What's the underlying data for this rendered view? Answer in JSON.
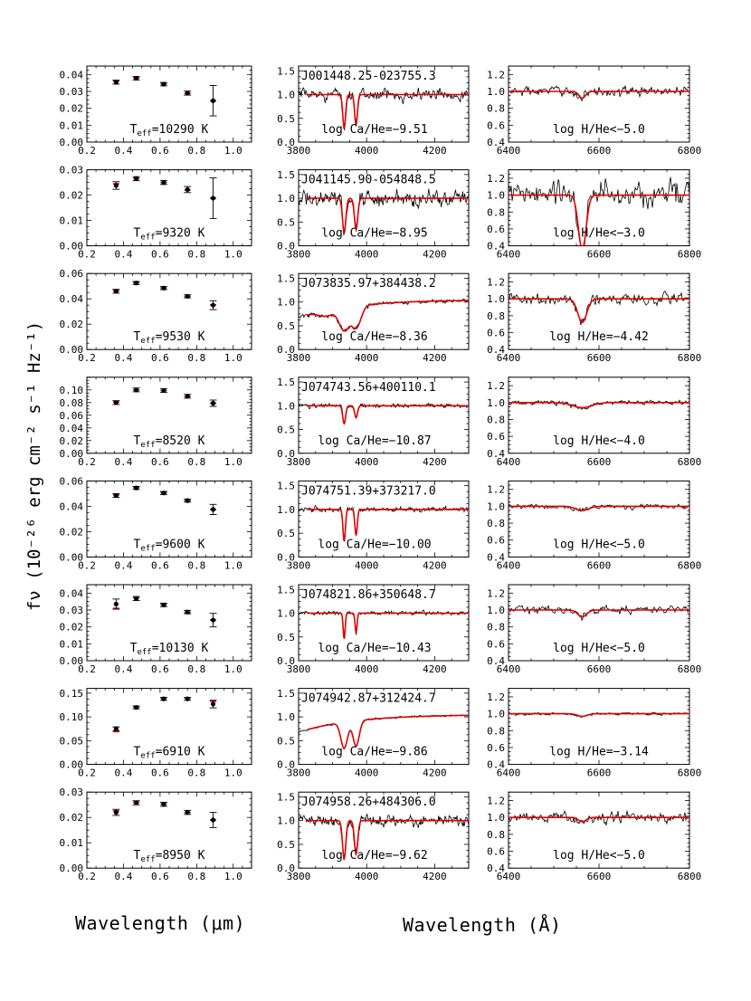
{
  "figure": {
    "ylabel": "fν (10⁻²⁶ erg cm⁻² s⁻¹ Hz⁻¹)",
    "xlabel_left": "Wavelength (μm)",
    "xlabel_right": "Wavelength (Å)",
    "model_color": "#e00000",
    "data_color": "#000000"
  },
  "chart_data": [
    {
      "type": "scatter",
      "panel": "photometry",
      "row": 1,
      "name": "",
      "annotation": "Teff=10290 K",
      "teff": 10290,
      "xlim": [
        0.2,
        1.1
      ],
      "ylim": [
        0,
        0.045
      ],
      "xticks": [
        0.2,
        0.4,
        0.6,
        0.8,
        1.0
      ],
      "yticks": [
        0.0,
        0.01,
        0.02,
        0.03,
        0.04
      ],
      "yfmt": 2,
      "x": [
        0.36,
        0.47,
        0.62,
        0.75,
        0.89
      ],
      "y": [
        0.0355,
        0.0378,
        0.0343,
        0.029,
        0.0245
      ],
      "yerr": [
        0.0012,
        0.001,
        0.001,
        0.0012,
        0.009
      ],
      "model_x": [
        0.36,
        0.47,
        0.62,
        0.75,
        0.89
      ],
      "model_y": [
        0.0362,
        0.038,
        0.0345,
        0.0288,
        0.0244
      ]
    },
    {
      "type": "line",
      "panel": "CaK",
      "row": 1,
      "name": "J001448.25-023755.3",
      "annotation": "log Ca/He=-9.51",
      "logCaHe": -9.51,
      "xlim": [
        3800,
        4300
      ],
      "ylim": [
        0,
        1.6
      ],
      "xticks": [
        3800,
        4000,
        4200
      ],
      "yticks": [
        0.0,
        0.5,
        1.0,
        1.5
      ],
      "yfmt": 1,
      "noise": 0.16,
      "continuum": "flat",
      "lines": [
        {
          "c": 3934,
          "depth": 0.7,
          "w": 6
        },
        {
          "c": 3969,
          "depth": 0.62,
          "w": 6
        }
      ]
    },
    {
      "type": "line",
      "panel": "Halpha",
      "row": 1,
      "annotation": "log H/He<-5.0",
      "logHHe": "<-5.0",
      "xlim": [
        6400,
        6800
      ],
      "ylim": [
        0.4,
        1.3
      ],
      "xticks": [
        6400,
        6600,
        6800
      ],
      "yticks": [
        0.4,
        0.6,
        0.8,
        1.0,
        1.2
      ],
      "yfmt": 1,
      "noise": 0.08,
      "lines": [
        {
          "c": 6563,
          "depth": 0.08,
          "w": 10
        }
      ]
    },
    {
      "type": "scatter",
      "panel": "photometry",
      "row": 2,
      "annotation": "Teff=9320 K",
      "teff": 9320,
      "xlim": [
        0.2,
        1.1
      ],
      "ylim": [
        0,
        0.03
      ],
      "xticks": [
        0.2,
        0.4,
        0.6,
        0.8,
        1.0
      ],
      "yticks": [
        0.0,
        0.01,
        0.02,
        0.03
      ],
      "yfmt": 2,
      "x": [
        0.36,
        0.47,
        0.62,
        0.75,
        0.89
      ],
      "y": [
        0.0238,
        0.0265,
        0.025,
        0.0222,
        0.0188
      ],
      "yerr": [
        0.0015,
        0.0008,
        0.0008,
        0.0012,
        0.008
      ],
      "model_x": [
        0.36,
        0.47,
        0.62,
        0.75,
        0.89
      ],
      "model_y": [
        0.0245,
        0.0267,
        0.025,
        0.022,
        0.0188
      ]
    },
    {
      "type": "line",
      "panel": "CaK",
      "row": 2,
      "name": "J041145.90-054848.5",
      "annotation": "log Ca/He=-8.95",
      "logCaHe": -8.95,
      "xlim": [
        3800,
        4300
      ],
      "ylim": [
        0,
        1.6
      ],
      "xticks": [
        3800,
        4000,
        4200
      ],
      "yticks": [
        0.0,
        0.5,
        1.0,
        1.5
      ],
      "yfmt": 1,
      "noise": 0.22,
      "continuum": "flat",
      "lines": [
        {
          "c": 3934,
          "depth": 0.72,
          "w": 7
        },
        {
          "c": 3969,
          "depth": 0.65,
          "w": 7
        }
      ]
    },
    {
      "type": "line",
      "panel": "Halpha",
      "row": 2,
      "annotation": "log H/He<-3.0",
      "logHHe": "<-3.0",
      "xlim": [
        6400,
        6800
      ],
      "ylim": [
        0.4,
        1.3
      ],
      "xticks": [
        6400,
        6600,
        6800
      ],
      "yticks": [
        0.4,
        0.6,
        0.8,
        1.0,
        1.2
      ],
      "yfmt": 1,
      "noise": 0.22,
      "lines": [
        {
          "c": 6563,
          "depth": 0.65,
          "w": 12
        }
      ]
    },
    {
      "type": "scatter",
      "panel": "photometry",
      "row": 3,
      "annotation": "Teff=9530 K",
      "teff": 9530,
      "xlim": [
        0.2,
        1.1
      ],
      "ylim": [
        0,
        0.06
      ],
      "xticks": [
        0.2,
        0.4,
        0.6,
        0.8,
        1.0
      ],
      "yticks": [
        0.0,
        0.02,
        0.04,
        0.06
      ],
      "yfmt": 2,
      "x": [
        0.36,
        0.47,
        0.62,
        0.75,
        0.89
      ],
      "y": [
        0.046,
        0.0525,
        0.0485,
        0.042,
        0.035
      ],
      "yerr": [
        0.0015,
        0.0012,
        0.0012,
        0.0012,
        0.0035
      ],
      "model_x": [
        0.36,
        0.47,
        0.62,
        0.75,
        0.89
      ],
      "model_y": [
        0.0465,
        0.0528,
        0.0487,
        0.042,
        0.0352
      ]
    },
    {
      "type": "line",
      "panel": "CaK",
      "row": 3,
      "name": "J073835.97+384438.2",
      "annotation": "log Ca/He=-8.36",
      "logCaHe": -8.36,
      "xlim": [
        3800,
        4300
      ],
      "ylim": [
        0,
        1.6
      ],
      "xticks": [
        3800,
        4000,
        4200
      ],
      "yticks": [
        0.0,
        0.5,
        1.0,
        1.5
      ],
      "yfmt": 1,
      "noise": 0.06,
      "continuum": "rising",
      "lines": [
        {
          "c": 3934,
          "depth": 0.55,
          "w": 22
        },
        {
          "c": 3969,
          "depth": 0.5,
          "w": 20
        },
        {
          "c": 3880,
          "depth": 0.15,
          "w": 30
        }
      ]
    },
    {
      "type": "line",
      "panel": "Halpha",
      "row": 3,
      "annotation": "log H/He=-4.42",
      "logHHe": -4.42,
      "xlim": [
        6400,
        6800
      ],
      "ylim": [
        0.4,
        1.3
      ],
      "xticks": [
        6400,
        6600,
        6800
      ],
      "yticks": [
        0.4,
        0.6,
        0.8,
        1.0,
        1.2
      ],
      "yfmt": 1,
      "noise": 0.09,
      "lines": [
        {
          "c": 6563,
          "depth": 0.28,
          "w": 14
        }
      ]
    },
    {
      "type": "scatter",
      "panel": "photometry",
      "row": 4,
      "annotation": "Teff=8520 K",
      "teff": 8520,
      "xlim": [
        0.2,
        1.1
      ],
      "ylim": [
        0,
        0.12
      ],
      "xticks": [
        0.2,
        0.4,
        0.6,
        0.8,
        1.0
      ],
      "yticks": [
        0.0,
        0.02,
        0.04,
        0.06,
        0.08,
        0.1
      ],
      "yfmt": 2,
      "x": [
        0.36,
        0.47,
        0.62,
        0.75,
        0.89
      ],
      "y": [
        0.08,
        0.1,
        0.099,
        0.09,
        0.079
      ],
      "yerr": [
        0.003,
        0.003,
        0.003,
        0.003,
        0.005
      ],
      "model_x": [
        0.36,
        0.47,
        0.62,
        0.75,
        0.89
      ],
      "model_y": [
        0.081,
        0.1,
        0.099,
        0.09,
        0.079
      ]
    },
    {
      "type": "line",
      "panel": "CaK",
      "row": 4,
      "name": "J074743.56+400110.1",
      "annotation": "log Ca/He=-10.87",
      "logCaHe": -10.87,
      "xlim": [
        3800,
        4300
      ],
      "ylim": [
        0,
        1.6
      ],
      "xticks": [
        3800,
        4000,
        4200
      ],
      "yticks": [
        0.0,
        0.5,
        1.0,
        1.5
      ],
      "yfmt": 1,
      "noise": 0.06,
      "continuum": "flat",
      "lines": [
        {
          "c": 3934,
          "depth": 0.38,
          "w": 6
        },
        {
          "c": 3969,
          "depth": 0.25,
          "w": 6
        }
      ]
    },
    {
      "type": "line",
      "panel": "Halpha",
      "row": 4,
      "annotation": "log H/He<-4.0",
      "logHHe": "<-4.0",
      "xlim": [
        6400,
        6800
      ],
      "ylim": [
        0.4,
        1.3
      ],
      "xticks": [
        6400,
        6600,
        6800
      ],
      "yticks": [
        0.4,
        0.6,
        0.8,
        1.0,
        1.2
      ],
      "yfmt": 1,
      "noise": 0.04,
      "lines": [
        {
          "c": 6563,
          "depth": 0.06,
          "w": 30
        }
      ]
    },
    {
      "type": "scatter",
      "panel": "photometry",
      "row": 5,
      "annotation": "Teff=9600 K",
      "teff": 9600,
      "xlim": [
        0.2,
        1.1
      ],
      "ylim": [
        0,
        0.06
      ],
      "xticks": [
        0.2,
        0.4,
        0.6,
        0.8,
        1.0
      ],
      "yticks": [
        0.0,
        0.02,
        0.04,
        0.06
      ],
      "yfmt": 2,
      "x": [
        0.36,
        0.47,
        0.62,
        0.75,
        0.89
      ],
      "y": [
        0.0485,
        0.0545,
        0.0505,
        0.0445,
        0.0375
      ],
      "yerr": [
        0.0015,
        0.0012,
        0.0012,
        0.0012,
        0.004
      ],
      "model_x": [
        0.36,
        0.47,
        0.62,
        0.75,
        0.89
      ],
      "model_y": [
        0.049,
        0.0548,
        0.0507,
        0.0445,
        0.0375
      ]
    },
    {
      "type": "line",
      "panel": "CaK",
      "row": 5,
      "name": "J074751.39+373217.0",
      "annotation": "log Ca/He=-10.00",
      "logCaHe": -10.0,
      "xlim": [
        3800,
        4300
      ],
      "ylim": [
        0,
        1.6
      ],
      "xticks": [
        3800,
        4000,
        4200
      ],
      "yticks": [
        0.0,
        0.5,
        1.0,
        1.5
      ],
      "yfmt": 1,
      "noise": 0.07,
      "continuum": "flat",
      "lines": [
        {
          "c": 3934,
          "depth": 0.68,
          "w": 5
        },
        {
          "c": 3969,
          "depth": 0.55,
          "w": 5
        }
      ]
    },
    {
      "type": "line",
      "panel": "Halpha",
      "row": 5,
      "annotation": "log H/He<-5.0",
      "logHHe": "<-5.0",
      "xlim": [
        6400,
        6800
      ],
      "ylim": [
        0.4,
        1.3
      ],
      "xticks": [
        6400,
        6600,
        6800
      ],
      "yticks": [
        0.4,
        0.6,
        0.8,
        1.0,
        1.2
      ],
      "yfmt": 1,
      "noise": 0.04,
      "lines": [
        {
          "c": 6563,
          "depth": 0.05,
          "w": 20
        }
      ]
    },
    {
      "type": "scatter",
      "panel": "photometry",
      "row": 6,
      "annotation": "Teff=10130 K",
      "teff": 10130,
      "xlim": [
        0.2,
        1.1
      ],
      "ylim": [
        0,
        0.045
      ],
      "xticks": [
        0.2,
        0.4,
        0.6,
        0.8,
        1.0
      ],
      "yticks": [
        0.0,
        0.01,
        0.02,
        0.03,
        0.04
      ],
      "yfmt": 2,
      "x": [
        0.36,
        0.47,
        0.62,
        0.75,
        0.89
      ],
      "y": [
        0.0335,
        0.0368,
        0.033,
        0.0288,
        0.024
      ],
      "yerr": [
        0.003,
        0.0012,
        0.001,
        0.001,
        0.004
      ],
      "model_x": [
        0.36,
        0.47,
        0.62,
        0.75,
        0.89
      ],
      "model_y": [
        0.031,
        0.0372,
        0.0332,
        0.0286,
        0.0242
      ]
    },
    {
      "type": "line",
      "panel": "CaK",
      "row": 6,
      "name": "J074821.86+350648.7",
      "annotation": "log Ca/He=-10.43",
      "logCaHe": -10.43,
      "xlim": [
        3800,
        4300
      ],
      "ylim": [
        0,
        1.6
      ],
      "xticks": [
        3800,
        4000,
        4200
      ],
      "yticks": [
        0.0,
        0.5,
        1.0,
        1.5
      ],
      "yfmt": 1,
      "noise": 0.06,
      "continuum": "flat",
      "lines": [
        {
          "c": 3934,
          "depth": 0.55,
          "w": 4
        },
        {
          "c": 3969,
          "depth": 0.42,
          "w": 4
        }
      ]
    },
    {
      "type": "line",
      "panel": "Halpha",
      "row": 6,
      "annotation": "log H/He<-5.0",
      "logHHe": "<-5.0",
      "xlim": [
        6400,
        6800
      ],
      "ylim": [
        0.4,
        1.3
      ],
      "xticks": [
        6400,
        6600,
        6800
      ],
      "yticks": [
        0.4,
        0.6,
        0.8,
        1.0,
        1.2
      ],
      "yfmt": 1,
      "noise": 0.06,
      "lines": [
        {
          "c": 6563,
          "depth": 0.08,
          "w": 14
        }
      ]
    },
    {
      "type": "scatter",
      "panel": "photometry",
      "row": 7,
      "annotation": "Teff=6910 K",
      "teff": 6910,
      "xlim": [
        0.2,
        1.1
      ],
      "ylim": [
        0,
        0.16
      ],
      "xticks": [
        0.2,
        0.4,
        0.6,
        0.8,
        1.0
      ],
      "yticks": [
        0.0,
        0.05,
        0.1,
        0.15
      ],
      "yfmt": 2,
      "x": [
        0.36,
        0.47,
        0.62,
        0.75,
        0.89
      ],
      "y": [
        0.075,
        0.12,
        0.138,
        0.138,
        0.127
      ],
      "yerr": [
        0.004,
        0.003,
        0.003,
        0.003,
        0.008
      ],
      "model_x": [
        0.36,
        0.47,
        0.62,
        0.75,
        0.89
      ],
      "model_y": [
        0.069,
        0.121,
        0.14,
        0.14,
        0.133
      ]
    },
    {
      "type": "line",
      "panel": "CaK",
      "row": 7,
      "name": "J074942.87+312424.7",
      "annotation": "log Ca/He=-9.86",
      "logCaHe": -9.86,
      "xlim": [
        3800,
        4300
      ],
      "ylim": [
        0,
        1.6
      ],
      "xticks": [
        3800,
        4000,
        4200
      ],
      "yticks": [
        0.0,
        0.5,
        1.0,
        1.5
      ],
      "yfmt": 1,
      "noise": 0.03,
      "continuum": "rising",
      "lines": [
        {
          "c": 3934,
          "depth": 0.62,
          "w": 14
        },
        {
          "c": 3969,
          "depth": 0.58,
          "w": 13
        }
      ]
    },
    {
      "type": "line",
      "panel": "Halpha",
      "row": 7,
      "annotation": "log H/He=-3.14",
      "logHHe": -3.14,
      "xlim": [
        6400,
        6800
      ],
      "ylim": [
        0.4,
        1.3
      ],
      "xticks": [
        6400,
        6600,
        6800
      ],
      "yticks": [
        0.4,
        0.6,
        0.8,
        1.0,
        1.2
      ],
      "yfmt": 1,
      "noise": 0.025,
      "lines": [
        {
          "c": 6563,
          "depth": 0.03,
          "w": 15
        }
      ]
    },
    {
      "type": "scatter",
      "panel": "photometry",
      "row": 8,
      "annotation": "Teff=8950 K",
      "teff": 8950,
      "xlim": [
        0.2,
        1.1
      ],
      "ylim": [
        0,
        0.03
      ],
      "xticks": [
        0.2,
        0.4,
        0.6,
        0.8,
        1.0
      ],
      "yticks": [
        0.0,
        0.01,
        0.02,
        0.03
      ],
      "yfmt": 2,
      "x": [
        0.36,
        0.47,
        0.62,
        0.75,
        0.89
      ],
      "y": [
        0.022,
        0.0258,
        0.0252,
        0.022,
        0.019
      ],
      "yerr": [
        0.0012,
        0.0008,
        0.0008,
        0.0008,
        0.003
      ],
      "model_x": [
        0.36,
        0.47,
        0.62,
        0.75,
        0.89
      ],
      "model_y": [
        0.0226,
        0.026,
        0.0253,
        0.022,
        0.019
      ]
    },
    {
      "type": "line",
      "panel": "CaK",
      "row": 8,
      "name": "J074958.26+484306.0",
      "annotation": "log Ca/He=-9.62",
      "logCaHe": -9.62,
      "xlim": [
        3800,
        4300
      ],
      "ylim": [
        0,
        1.6
      ],
      "xticks": [
        3800,
        4000,
        4200
      ],
      "yticks": [
        0.0,
        0.5,
        1.0,
        1.5
      ],
      "yfmt": 1,
      "noise": 0.16,
      "continuum": "flat",
      "lines": [
        {
          "c": 3934,
          "depth": 0.8,
          "w": 7
        },
        {
          "c": 3969,
          "depth": 0.7,
          "w": 7
        }
      ]
    },
    {
      "type": "line",
      "panel": "Halpha",
      "row": 8,
      "annotation": "log H/He<-5.0",
      "logHHe": "<-5.0",
      "xlim": [
        6400,
        6800
      ],
      "ylim": [
        0.4,
        1.3
      ],
      "xticks": [
        6400,
        6600,
        6800
      ],
      "yticks": [
        0.4,
        0.6,
        0.8,
        1.0,
        1.2
      ],
      "yfmt": 1,
      "noise": 0.09,
      "lines": [
        {
          "c": 6563,
          "depth": 0.05,
          "w": 12
        }
      ]
    }
  ]
}
